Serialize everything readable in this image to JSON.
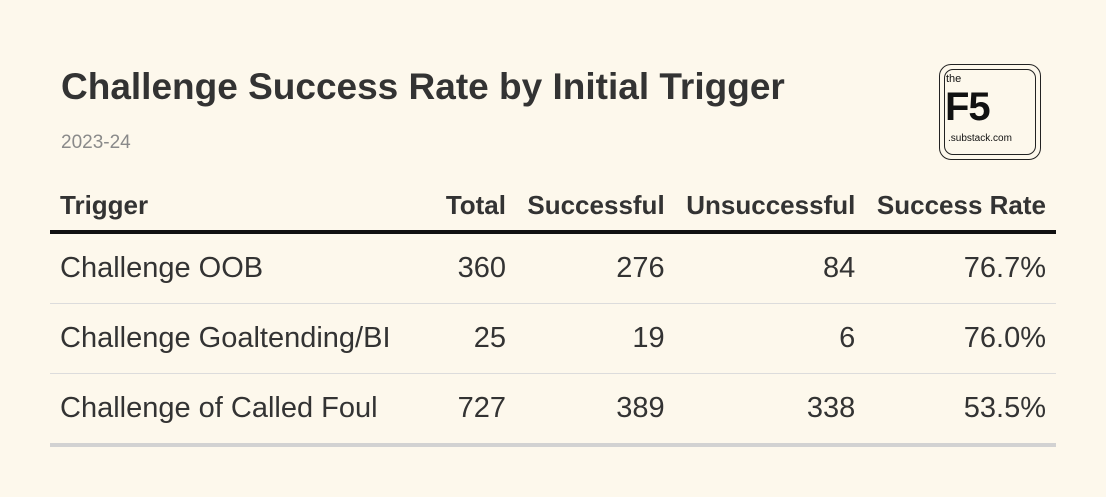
{
  "title": "Challenge Success Rate by Initial Trigger",
  "subtitle": "2023-24",
  "logo": {
    "small_text": "the",
    "main_text": "F5",
    "domain_text": ".substack.com"
  },
  "colors": {
    "background": "#fdf8ec",
    "text": "#333333",
    "subtitle": "#8a8a8a",
    "header_rule": "#111111",
    "row_rule": "#dcdcdc"
  },
  "chart_data": {
    "type": "table",
    "title": "Challenge Success Rate by Initial Trigger",
    "subtitle": "2023-24",
    "columns": [
      "Trigger",
      "Total",
      "Successful",
      "Unsuccessful",
      "Success Rate"
    ],
    "rows": [
      {
        "trigger": "Challenge OOB",
        "total": "360",
        "successful": "276",
        "unsuccessful": "84",
        "success_rate": "76.7%"
      },
      {
        "trigger": "Challenge Goaltending/BI",
        "total": "25",
        "successful": "19",
        "unsuccessful": "6",
        "success_rate": "76.0%"
      },
      {
        "trigger": "Challenge of Called Foul",
        "total": "727",
        "successful": "389",
        "unsuccessful": "338",
        "success_rate": "53.5%"
      }
    ]
  }
}
